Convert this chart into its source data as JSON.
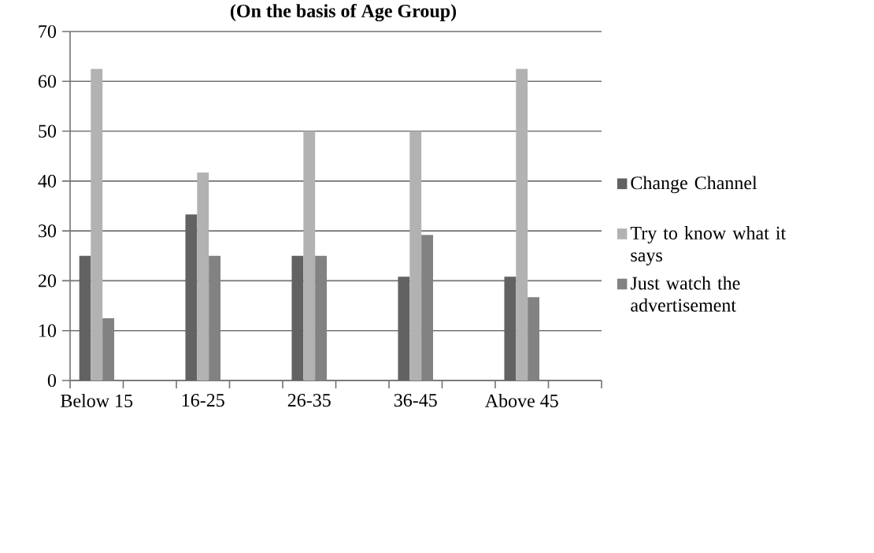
{
  "chart_data": {
    "type": "bar",
    "title": "(On the basis of Age Group)",
    "categories": [
      "Below 15",
      null,
      "16-25",
      null,
      "26-35",
      null,
      "36-45",
      null,
      "Above 45",
      null
    ],
    "series": [
      {
        "name": "Change Channel",
        "color": "#626262",
        "values": [
          25,
          null,
          33.3,
          null,
          25,
          null,
          20.8,
          null,
          20.8,
          null
        ]
      },
      {
        "name": "Try to know what it says",
        "color": "#b2b2b2",
        "values": [
          62.5,
          null,
          41.7,
          null,
          50,
          null,
          50,
          null,
          62.5,
          null
        ]
      },
      {
        "name": "Just watch the advertisement",
        "color": "#828282",
        "values": [
          12.5,
          null,
          25,
          null,
          25,
          null,
          29.2,
          null,
          16.7,
          null
        ]
      }
    ],
    "ylim": [
      0,
      70
    ],
    "yticks": [
      0,
      10,
      20,
      30,
      40,
      50,
      60,
      70
    ],
    "grid": "y",
    "legend": "right"
  }
}
